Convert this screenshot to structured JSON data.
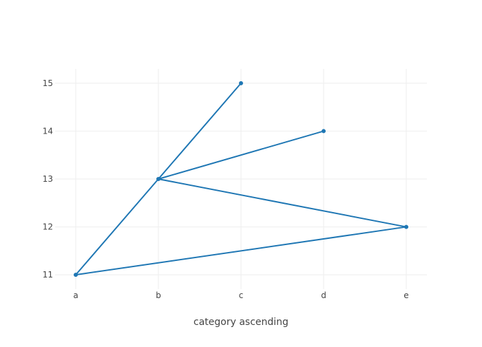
{
  "chart_data": {
    "type": "line",
    "x": [
      "a",
      "b",
      "c",
      "b",
      "d",
      "b",
      "e",
      "a"
    ],
    "series": [
      {
        "values": [
          11,
          13,
          15,
          13,
          14,
          13,
          12,
          11
        ]
      }
    ],
    "categories": [
      "a",
      "b",
      "c",
      "d",
      "e"
    ],
    "title": "",
    "xlabel": "category ascending",
    "ylabel": "",
    "ylim": [
      10.7,
      15.3
    ],
    "yticks": [
      11,
      12,
      13,
      14,
      15
    ],
    "grid": true,
    "markers": true,
    "colors": {
      "line": "#1f77b4",
      "grid": "#eeeeee",
      "text": "#444444"
    }
  }
}
